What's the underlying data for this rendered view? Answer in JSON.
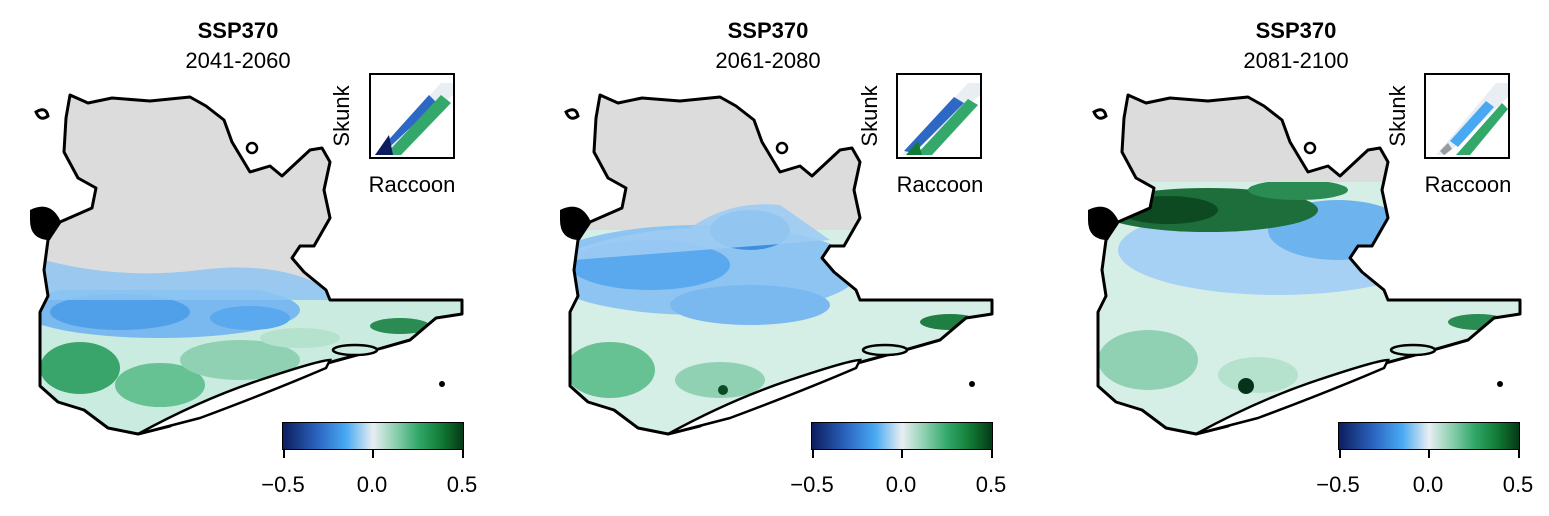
{
  "panels": [
    {
      "title": "SSP370",
      "period": "2041-2060",
      "variant": 1
    },
    {
      "title": "SSP370",
      "period": "2061-2080",
      "variant": 2
    },
    {
      "title": "SSP370",
      "period": "2081-2100",
      "variant": 3
    }
  ],
  "inset": {
    "ylabel": "Skunk",
    "xlabel": "Raccoon"
  },
  "colorbar": {
    "ticks": [
      "−0.5",
      "0.0",
      "0.5"
    ],
    "min": -0.5,
    "max": 0.5,
    "colors": [
      "#0c1d5e",
      "#2d68c4",
      "#48a9f2",
      "#e9eef2",
      "#8fd1b2",
      "#33a86a",
      "#117a35",
      "#053916"
    ]
  },
  "map": {
    "no_data_color": "#dcdcdc",
    "outline_color": "#000000"
  }
}
